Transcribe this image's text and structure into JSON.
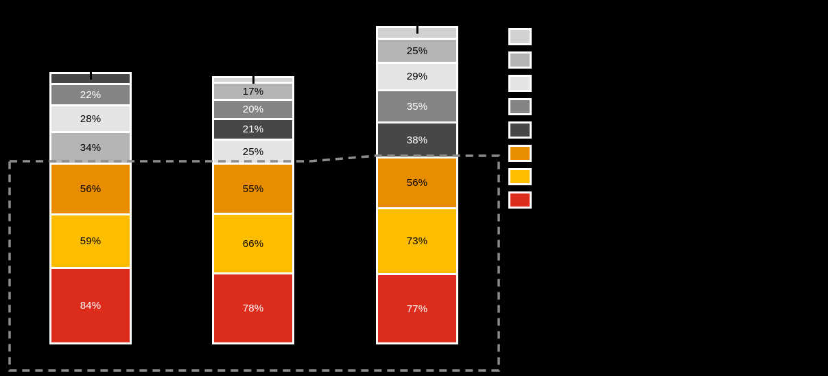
{
  "background": "#000000",
  "chart_data": {
    "type": "bar",
    "subtype": "stacked",
    "unit": "%",
    "grid": false,
    "bar_count": 3,
    "palette": {
      "silver": "#D2D2D2",
      "light-gray": "#E4E4E4",
      "mid-light-gray": "#B4B4B4",
      "mid-gray": "#848484",
      "dark-gray": "#474747",
      "orange": "#E88C00",
      "amber": "#FFBD00",
      "red": "#DC2C1B"
    },
    "segment_border_color": "#FFFFFF",
    "bars": [
      {
        "segments": [
          {
            "color": "dark-gray",
            "value": 10,
            "label": "",
            "label_color": "#FFFFFF",
            "estimated": true
          },
          {
            "color": "mid-gray",
            "value": 22,
            "label": "22%",
            "label_color": "#FFFFFF"
          },
          {
            "color": "light-gray",
            "value": 28,
            "label": "28%",
            "label_color": "#000000"
          },
          {
            "color": "mid-light-gray",
            "value": 34,
            "label": "34%",
            "label_color": "#000000"
          },
          {
            "color": "orange",
            "value": 56,
            "label": "56%",
            "label_color": "#000000"
          },
          {
            "color": "amber",
            "value": 59,
            "label": "59%",
            "label_color": "#000000"
          },
          {
            "color": "red",
            "value": 84,
            "label": "84%",
            "label_color": "#FFFFFF"
          }
        ]
      },
      {
        "segments": [
          {
            "color": "silver",
            "value": 4,
            "label": "",
            "label_color": "#000000",
            "estimated": true
          },
          {
            "color": "mid-light-gray",
            "value": 17,
            "label": "17%",
            "label_color": "#000000"
          },
          {
            "color": "mid-gray",
            "value": 20,
            "label": "20%",
            "label_color": "#FFFFFF"
          },
          {
            "color": "dark-gray",
            "value": 21,
            "label": "21%",
            "label_color": "#FFFFFF"
          },
          {
            "color": "light-gray",
            "value": 25,
            "label": "25%",
            "label_color": "#000000"
          },
          {
            "color": "orange",
            "value": 55,
            "label": "55%",
            "label_color": "#000000"
          },
          {
            "color": "amber",
            "value": 66,
            "label": "66%",
            "label_color": "#000000"
          },
          {
            "color": "red",
            "value": 78,
            "label": "78%",
            "label_color": "#FFFFFF"
          }
        ]
      },
      {
        "segments": [
          {
            "color": "silver",
            "value": 11,
            "label": "",
            "label_color": "#000000",
            "estimated": true
          },
          {
            "color": "mid-light-gray",
            "value": 25,
            "label": "25%",
            "label_color": "#000000"
          },
          {
            "color": "light-gray",
            "value": 29,
            "label": "29%",
            "label_color": "#000000"
          },
          {
            "color": "mid-gray",
            "value": 35,
            "label": "35%",
            "label_color": "#FFFFFF"
          },
          {
            "color": "dark-gray",
            "value": 38,
            "label": "38%",
            "label_color": "#FFFFFF"
          },
          {
            "color": "orange",
            "value": 56,
            "label": "56%",
            "label_color": "#000000"
          },
          {
            "color": "amber",
            "value": 73,
            "label": "73%",
            "label_color": "#000000"
          },
          {
            "color": "red",
            "value": 77,
            "label": "77%",
            "label_color": "#FFFFFF"
          }
        ]
      }
    ],
    "legend": {
      "position": "right",
      "entries": [
        {
          "color": "silver",
          "label": ""
        },
        {
          "color": "mid-light-gray",
          "label": ""
        },
        {
          "color": "light-gray",
          "label": ""
        },
        {
          "color": "mid-gray",
          "label": ""
        },
        {
          "color": "dark-gray",
          "label": ""
        },
        {
          "color": "orange",
          "label": ""
        },
        {
          "color": "amber",
          "label": ""
        },
        {
          "color": "red",
          "label": ""
        }
      ]
    },
    "annotations": {
      "dashed_outline_color": "#8C8C8C",
      "dashed_outline_encloses": "orange, amber and red segments of all three bars"
    }
  }
}
